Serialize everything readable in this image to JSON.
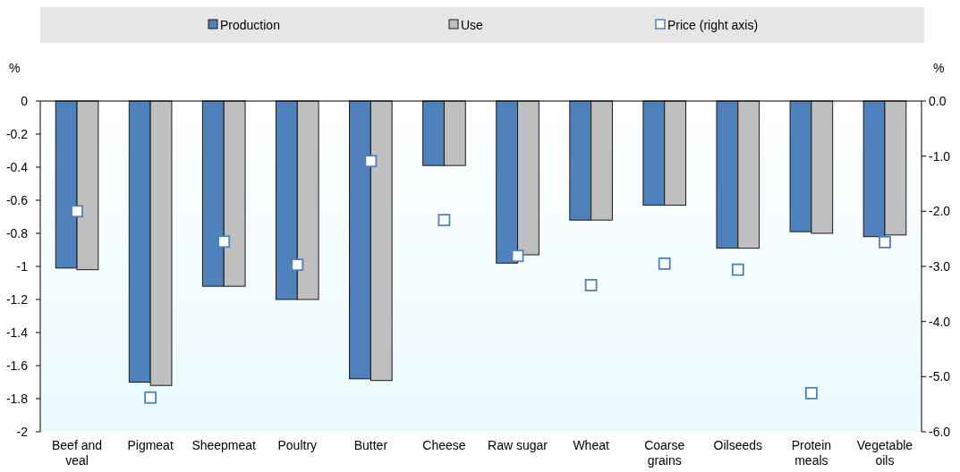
{
  "chart_data": {
    "type": "bar",
    "ylabel": "%",
    "y2label": "%",
    "categories": [
      "Beef and veal",
      "Pigmeat",
      "Sheepmeat",
      "Poultry",
      "Butter",
      "Cheese",
      "Raw sugar",
      "Wheat",
      "Coarse grains",
      "Oilseeds",
      "Protein meals",
      "Vegetable oils"
    ],
    "series": [
      {
        "name": "Production",
        "color": "#4f81bd",
        "values": [
          -1.01,
          -1.7,
          -1.12,
          -1.2,
          -1.68,
          -0.39,
          -0.98,
          -0.72,
          -0.63,
          -0.89,
          -0.79,
          -0.82
        ]
      },
      {
        "name": "Use",
        "color": "#bfbfbf",
        "values": [
          -1.02,
          -1.72,
          -1.12,
          -1.2,
          -1.69,
          -0.39,
          -0.93,
          -0.72,
          -0.63,
          -0.89,
          -0.8,
          -0.81
        ]
      },
      {
        "name": "Price (right axis)",
        "type": "scatter",
        "axis": "y2",
        "marker": "square",
        "color": "#4f81bd",
        "values": [
          -2.0,
          -5.38,
          -2.55,
          -2.97,
          -1.09,
          -2.16,
          -2.81,
          -3.34,
          -2.95,
          -3.06,
          -5.3,
          -2.56
        ]
      }
    ],
    "ylim": [
      -2,
      0
    ],
    "yticks": [
      0,
      -0.2,
      -0.4,
      -0.6,
      -0.8,
      -1,
      -1.2,
      -1.4,
      -1.6,
      -1.8,
      -2
    ],
    "y2lim": [
      -6,
      0
    ],
    "y2ticks": [
      {
        "value": 0,
        "label": "0.0"
      },
      {
        "value": -1,
        "label": "-1.0"
      },
      {
        "value": -2,
        "label": "-2.0"
      },
      {
        "value": -3,
        "label": "-3.0"
      },
      {
        "value": -4,
        "label": "-4.0"
      },
      {
        "value": -5,
        "label": "-5.0"
      },
      {
        "value": -6,
        "label": "-6.0"
      }
    ],
    "legend": "top",
    "grid": false
  }
}
